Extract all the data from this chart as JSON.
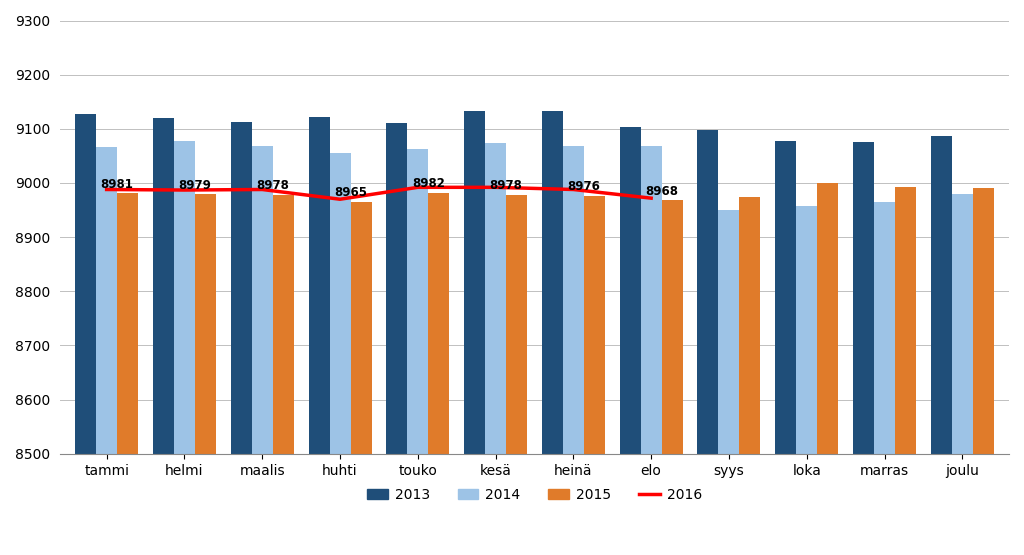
{
  "months": [
    "tammi",
    "helmi",
    "maalis",
    "huhti",
    "touko",
    "kesä",
    "heinä",
    "elo",
    "syys",
    "loka",
    "marras",
    "joulu"
  ],
  "series_2013": [
    9128,
    9120,
    9113,
    9121,
    9110,
    9133,
    9132,
    9104,
    9098,
    9077,
    9076,
    9086
  ],
  "series_2014": [
    9067,
    9077,
    9068,
    9055,
    9063,
    9073,
    9068,
    9068,
    8950,
    8958,
    8965,
    8980
  ],
  "series_2015": [
    8981,
    8979,
    8978,
    8965,
    8982,
    8978,
    8976,
    8968,
    8975,
    9000,
    8993,
    8990
  ],
  "series_2016": [
    8988,
    8987,
    8988,
    8970,
    8992,
    8992,
    8988,
    8972,
    null,
    null,
    null,
    null
  ],
  "color_2013": "#1F4E79",
  "color_2014": "#9DC3E6",
  "color_2015": "#E07B2A",
  "color_2016": "#FF0000",
  "ylim_min": 8500,
  "ylim_max": 9300,
  "yticks": [
    8500,
    8600,
    8700,
    8800,
    8900,
    9000,
    9100,
    9200,
    9300
  ],
  "background_color": "#FFFFFF",
  "legend_labels": [
    "2013",
    "2014",
    "2015",
    "2016"
  ],
  "bar_bottom": 8500,
  "bar_width": 0.27,
  "label_months": 8
}
